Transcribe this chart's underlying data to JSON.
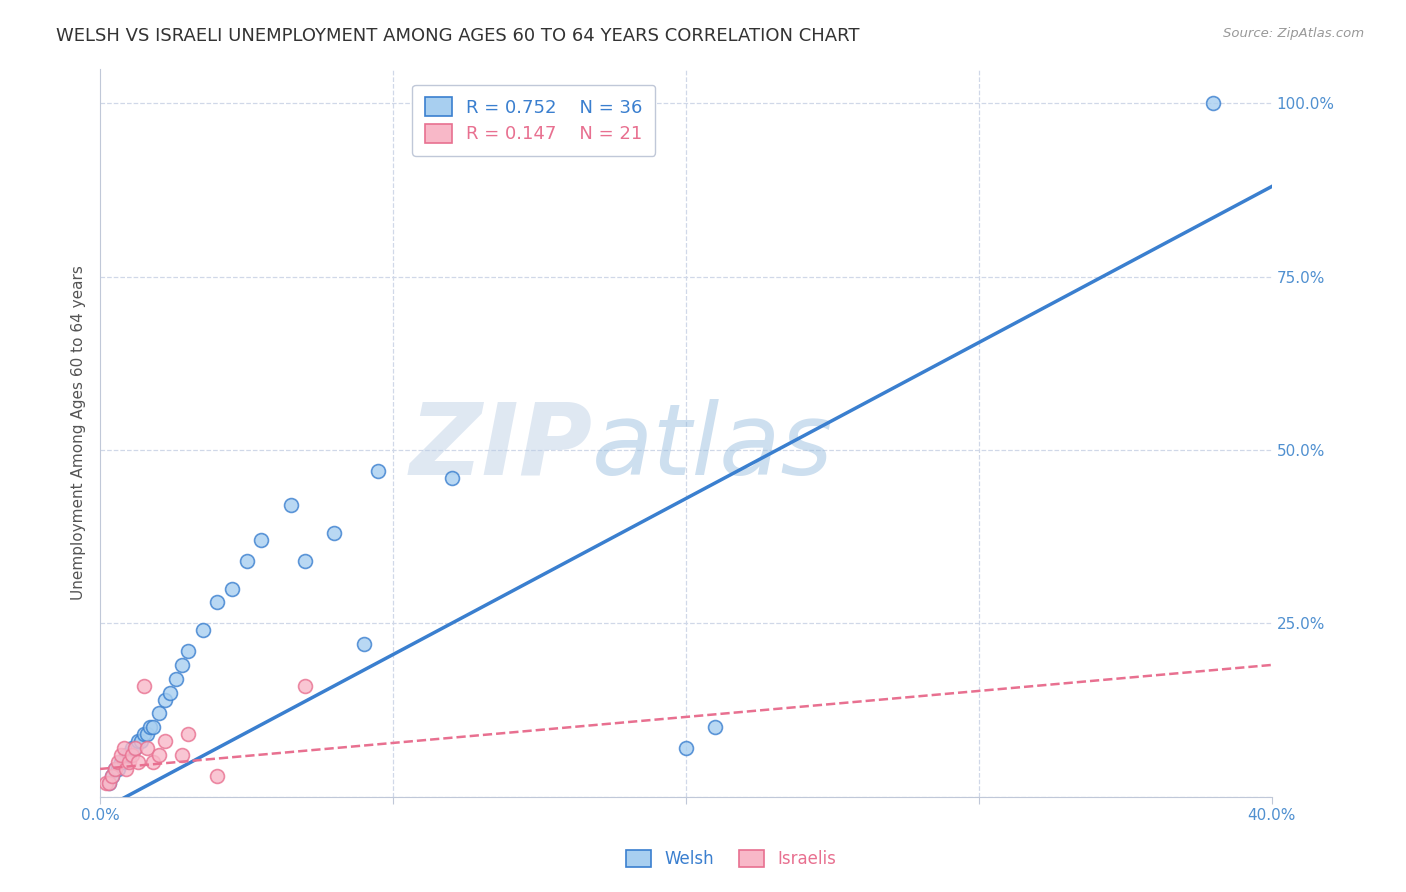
{
  "title": "WELSH VS ISRAELI UNEMPLOYMENT AMONG AGES 60 TO 64 YEARS CORRELATION CHART",
  "source": "Source: ZipAtlas.com",
  "ylabel": "Unemployment Among Ages 60 to 64 years",
  "y_ticks": [
    0.0,
    0.25,
    0.5,
    0.75,
    1.0
  ],
  "y_tick_labels": [
    "",
    "25.0%",
    "50.0%",
    "75.0%",
    "100.0%"
  ],
  "x_range": [
    0.0,
    0.4
  ],
  "y_range": [
    0.0,
    1.05
  ],
  "welsh_color": "#a8cff0",
  "israeli_color": "#f8b8c8",
  "welsh_line_color": "#3a7fcf",
  "israeli_line_color": "#e87090",
  "background_color": "#ffffff",
  "grid_color": "#d0d8e8",
  "legend_r_welsh": "0.752",
  "legend_n_welsh": "36",
  "legend_r_israeli": "0.147",
  "legend_n_israeli": "21",
  "welsh_x": [
    0.003,
    0.004,
    0.005,
    0.006,
    0.007,
    0.008,
    0.009,
    0.01,
    0.011,
    0.012,
    0.013,
    0.014,
    0.015,
    0.016,
    0.017,
    0.018,
    0.02,
    0.022,
    0.024,
    0.026,
    0.028,
    0.03,
    0.035,
    0.04,
    0.045,
    0.05,
    0.055,
    0.065,
    0.07,
    0.08,
    0.09,
    0.095,
    0.12,
    0.2,
    0.21,
    0.38
  ],
  "welsh_y": [
    0.02,
    0.03,
    0.04,
    0.04,
    0.05,
    0.05,
    0.06,
    0.06,
    0.07,
    0.07,
    0.08,
    0.08,
    0.09,
    0.09,
    0.1,
    0.1,
    0.12,
    0.14,
    0.15,
    0.17,
    0.19,
    0.21,
    0.24,
    0.28,
    0.3,
    0.34,
    0.37,
    0.42,
    0.34,
    0.38,
    0.22,
    0.47,
    0.46,
    0.07,
    0.1,
    1.0
  ],
  "israeli_x": [
    0.002,
    0.003,
    0.004,
    0.005,
    0.006,
    0.007,
    0.008,
    0.009,
    0.01,
    0.011,
    0.012,
    0.013,
    0.015,
    0.016,
    0.018,
    0.02,
    0.022,
    0.028,
    0.03,
    0.04,
    0.07
  ],
  "israeli_y": [
    0.02,
    0.02,
    0.03,
    0.04,
    0.05,
    0.06,
    0.07,
    0.04,
    0.05,
    0.06,
    0.07,
    0.05,
    0.16,
    0.07,
    0.05,
    0.06,
    0.08,
    0.06,
    0.09,
    0.03,
    0.16
  ],
  "welsh_line_x0": 0.0,
  "welsh_line_y0": -0.02,
  "welsh_line_x1": 0.4,
  "welsh_line_y1": 0.88,
  "israeli_line_x0": 0.0,
  "israeli_line_y0": 0.04,
  "israeli_line_x1": 0.4,
  "israeli_line_y1": 0.19,
  "watermark_zip": "ZIP",
  "watermark_atlas": "atlas",
  "marker_size": 100,
  "title_fontsize": 13,
  "axis_label_fontsize": 11,
  "tick_fontsize": 11,
  "legend_fontsize": 13
}
